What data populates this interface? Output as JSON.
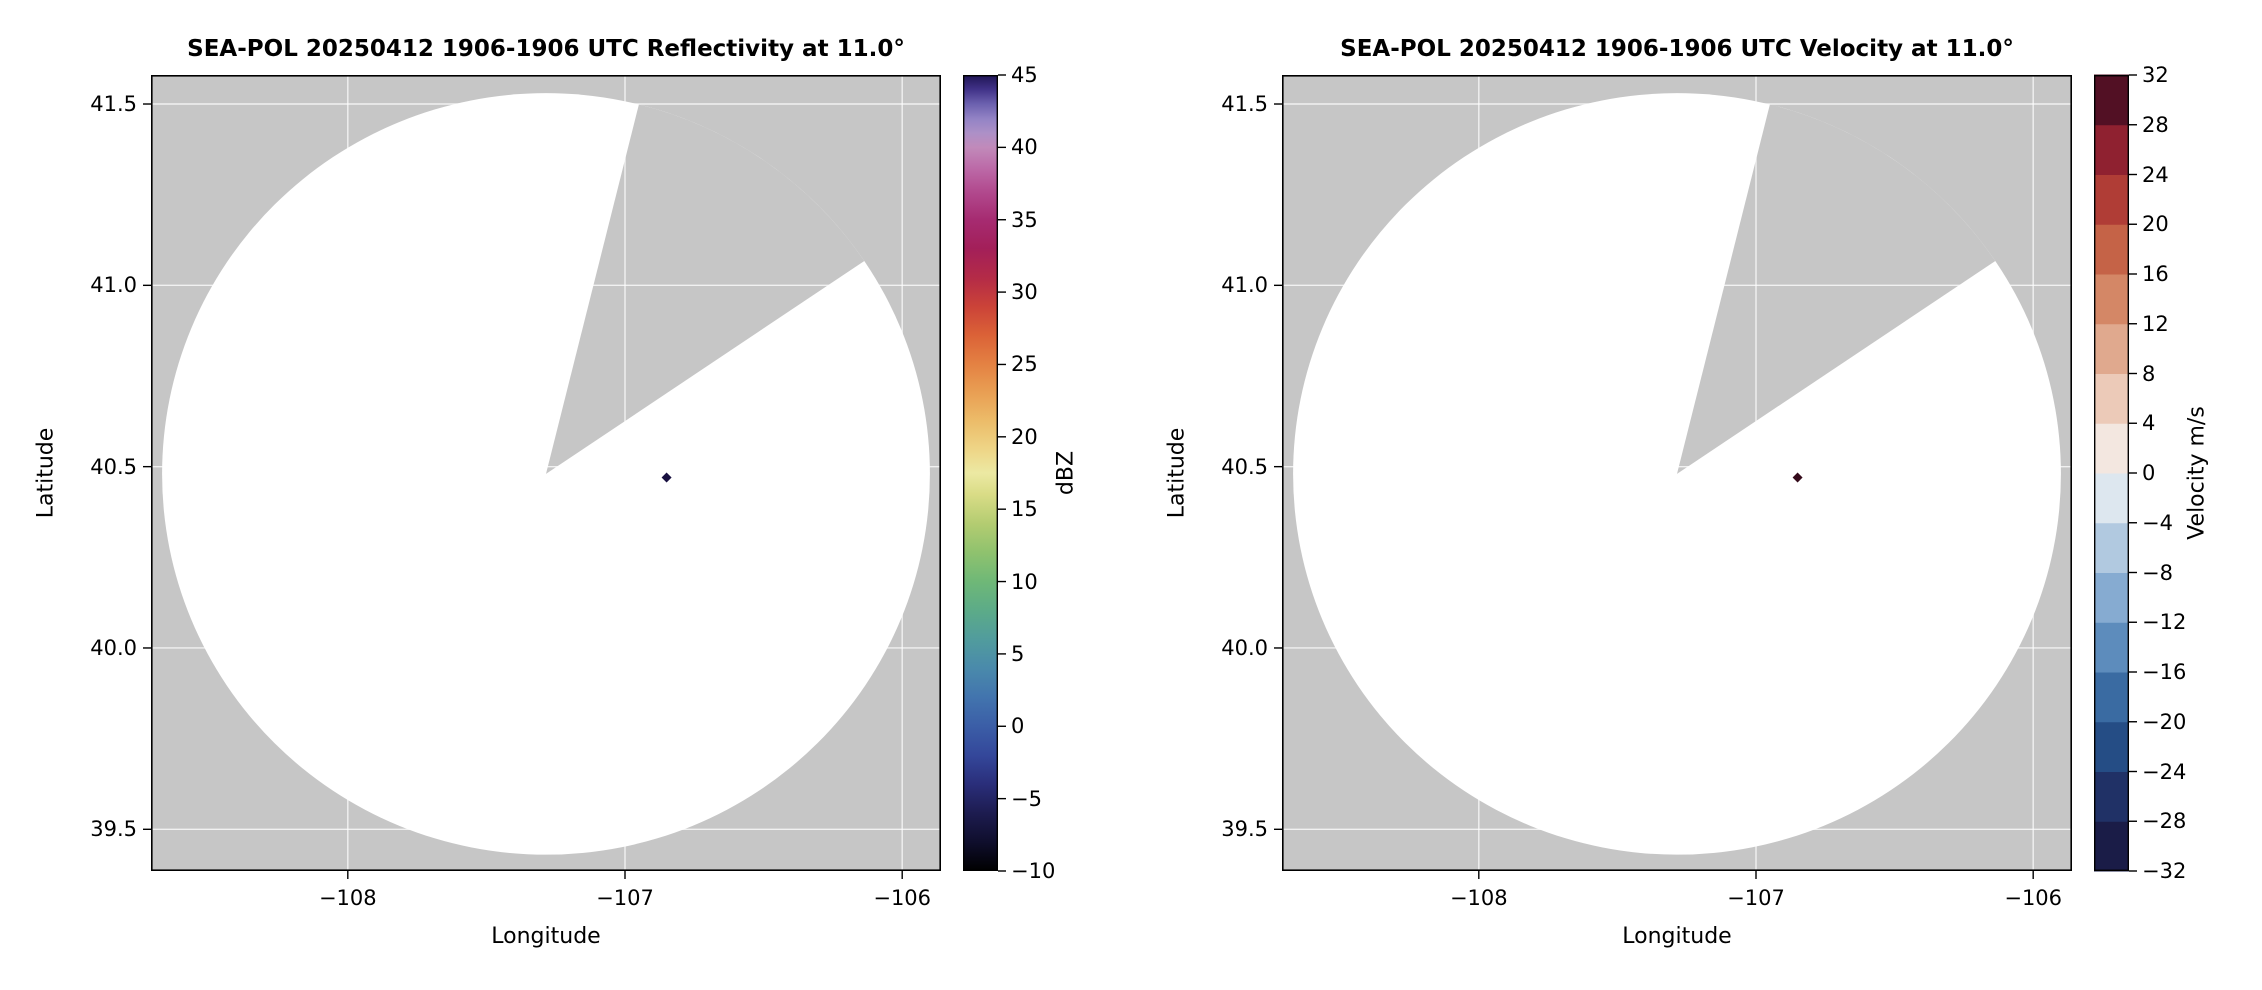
{
  "figure": {
    "background": "#ffffff",
    "text_color": "#000000"
  },
  "chart_data": [
    {
      "type": "heatmap",
      "subtype": "radar-ppi",
      "title": "SEA-POL 20250412 1906-1906 UTC Reflectivity at 11.0°",
      "xlabel": "Longitude",
      "ylabel": "Latitude",
      "xlim": [
        -108.71,
        -105.86
      ],
      "ylim": [
        39.385,
        41.58
      ],
      "xticks": [
        -108,
        -107,
        -106
      ],
      "xtick_labels": [
        "−108",
        "−107",
        "−106"
      ],
      "yticks": [
        39.5,
        40.0,
        40.5,
        41.0,
        41.5
      ],
      "ytick_labels": [
        "39.5",
        "40.0",
        "40.5",
        "41.0",
        "41.5"
      ],
      "grid": true,
      "radar_center": {
        "lon": -107.285,
        "lat": 40.48
      },
      "scan_radius": {
        "lon_deg": 1.385,
        "lat_deg": 1.05
      },
      "missing_sector_azimuth_deg": [
        14,
        56
      ],
      "echoes": [
        {
          "lon": -106.85,
          "lat": 40.47,
          "color": "#181040"
        }
      ],
      "colors": {
        "no_data": "#c6c6c6",
        "scan_fill": "#ffffff",
        "grid": "rgba(255,255,255,0.75)"
      },
      "colorbar": {
        "label": "dBZ",
        "min": -10,
        "max": 45,
        "style": "gradient",
        "ticks": [
          -10,
          -5,
          0,
          5,
          10,
          15,
          20,
          25,
          30,
          35,
          40,
          45
        ],
        "tick_labels": [
          "−10",
          "−5",
          "0",
          "5",
          "10",
          "15",
          "20",
          "25",
          "30",
          "35",
          "40",
          "45"
        ],
        "gradient_stops": [
          [
            0.0,
            "#000000"
          ],
          [
            0.036,
            "#0f0e2c"
          ],
          [
            0.073,
            "#1d1c50"
          ],
          [
            0.109,
            "#2a2e7a"
          ],
          [
            0.145,
            "#34479a"
          ],
          [
            0.182,
            "#3b5ea7"
          ],
          [
            0.218,
            "#4274ae"
          ],
          [
            0.255,
            "#4a8aab"
          ],
          [
            0.291,
            "#519c9d"
          ],
          [
            0.327,
            "#5cab88"
          ],
          [
            0.364,
            "#6fb877"
          ],
          [
            0.4,
            "#8fc26e"
          ],
          [
            0.436,
            "#b3cc71"
          ],
          [
            0.473,
            "#d9dc86"
          ],
          [
            0.5,
            "#ece9a3"
          ],
          [
            0.527,
            "#eed789"
          ],
          [
            0.564,
            "#ecbd6a"
          ],
          [
            0.6,
            "#e9a054"
          ],
          [
            0.636,
            "#e48243"
          ],
          [
            0.673,
            "#db6237"
          ],
          [
            0.709,
            "#cb4338"
          ],
          [
            0.745,
            "#b42b47"
          ],
          [
            0.782,
            "#a31f59"
          ],
          [
            0.818,
            "#a62b71"
          ],
          [
            0.855,
            "#b24b8f"
          ],
          [
            0.882,
            "#bc69a7"
          ],
          [
            0.909,
            "#c18aba"
          ],
          [
            0.927,
            "#ad90c7"
          ],
          [
            0.945,
            "#9383c5"
          ],
          [
            0.964,
            "#6b60ae"
          ],
          [
            0.982,
            "#413288"
          ],
          [
            1.0,
            "#1f1554"
          ]
        ]
      }
    },
    {
      "type": "heatmap",
      "subtype": "radar-ppi",
      "title": "SEA-POL 20250412 1906-1906 UTC Velocity at 11.0°",
      "xlabel": "Longitude",
      "ylabel": "Latitude",
      "xlim": [
        -108.71,
        -105.86
      ],
      "ylim": [
        39.385,
        41.58
      ],
      "xticks": [
        -108,
        -107,
        -106
      ],
      "xtick_labels": [
        "−108",
        "−107",
        "−106"
      ],
      "yticks": [
        39.5,
        40.0,
        40.5,
        41.0,
        41.5
      ],
      "ytick_labels": [
        "39.5",
        "40.0",
        "40.5",
        "41.0",
        "41.5"
      ],
      "grid": true,
      "radar_center": {
        "lon": -107.285,
        "lat": 40.48
      },
      "scan_radius": {
        "lon_deg": 1.385,
        "lat_deg": 1.05
      },
      "missing_sector_azimuth_deg": [
        14,
        56
      ],
      "echoes": [
        {
          "lon": -106.85,
          "lat": 40.47,
          "color": "#350b1b"
        }
      ],
      "colors": {
        "no_data": "#c6c6c6",
        "scan_fill": "#ffffff",
        "grid": "rgba(255,255,255,0.75)"
      },
      "colorbar": {
        "label": "Velocity m/s",
        "min": -32,
        "max": 32,
        "style": "blocks",
        "ticks": [
          -32,
          -28,
          -24,
          -20,
          -16,
          -12,
          -8,
          -4,
          0,
          4,
          8,
          12,
          16,
          20,
          24,
          28,
          32
        ],
        "tick_labels": [
          "−32",
          "−28",
          "−24",
          "−20",
          "−16",
          "−12",
          "−8",
          "−4",
          "0",
          "4",
          "8",
          "12",
          "16",
          "20",
          "24",
          "28",
          "32"
        ],
        "block_colors": [
          "#1a1c47",
          "#203166",
          "#254d85",
          "#3a6ba2",
          "#5d8cbc",
          "#86abd1",
          "#b1c9e0",
          "#dde7ef",
          "#f3e7e0",
          "#eccab8",
          "#e0a98e",
          "#d48766",
          "#c56347",
          "#b03d36",
          "#8f2130",
          "#521024"
        ]
      }
    }
  ]
}
